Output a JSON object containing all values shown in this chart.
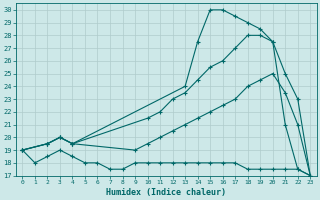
{
  "xlabel": "Humidex (Indice chaleur)",
  "bg_color": "#cde8e8",
  "grid_color": "#b0cccc",
  "line_color": "#006868",
  "xlim": [
    -0.5,
    23.5
  ],
  "ylim": [
    17,
    30.5
  ],
  "xticks": [
    0,
    1,
    2,
    3,
    4,
    5,
    6,
    7,
    8,
    9,
    10,
    11,
    12,
    13,
    14,
    15,
    16,
    17,
    18,
    19,
    20,
    21,
    22,
    23
  ],
  "yticks": [
    17,
    18,
    19,
    20,
    21,
    22,
    23,
    24,
    25,
    26,
    27,
    28,
    29,
    30
  ],
  "series": [
    {
      "x": [
        0,
        1,
        2,
        3,
        4,
        5,
        6,
        7,
        8,
        9,
        10,
        11,
        12,
        13,
        14,
        15,
        16,
        17,
        18,
        19,
        20,
        21,
        22,
        23
      ],
      "y": [
        19,
        18,
        18.5,
        19,
        18.5,
        18,
        18,
        17.5,
        17.5,
        18,
        18,
        18,
        18,
        18,
        18,
        18,
        18,
        18,
        17.5,
        17.5,
        17.5,
        17.5,
        17.5,
        17
      ]
    },
    {
      "x": [
        0,
        2,
        3,
        4,
        9,
        10,
        11,
        12,
        13,
        14,
        15,
        16,
        17,
        18,
        19,
        20,
        21,
        22,
        23
      ],
      "y": [
        19,
        19.5,
        20,
        19.5,
        19,
        19.5,
        20,
        20.5,
        21,
        21.5,
        22,
        22.5,
        23,
        24,
        24.5,
        25,
        23.5,
        21,
        17
      ]
    },
    {
      "x": [
        0,
        2,
        3,
        4,
        10,
        11,
        12,
        13,
        14,
        15,
        16,
        17,
        18,
        19,
        20,
        21,
        22,
        23
      ],
      "y": [
        19,
        19.5,
        20,
        19.5,
        21.5,
        22,
        23,
        23.5,
        24.5,
        25.5,
        26,
        27,
        28,
        28,
        27.5,
        25,
        23,
        17
      ]
    },
    {
      "x": [
        0,
        2,
        3,
        4,
        13,
        14,
        15,
        16,
        17,
        18,
        19,
        20,
        21,
        22,
        23
      ],
      "y": [
        19,
        19.5,
        20,
        19.5,
        24,
        27.5,
        30,
        30,
        29.5,
        29,
        28.5,
        27.5,
        21,
        17.5,
        17
      ]
    }
  ]
}
